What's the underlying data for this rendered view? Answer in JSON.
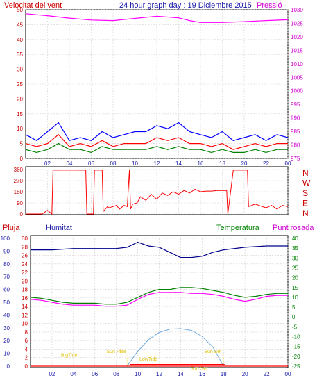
{
  "header": {
    "wind_speed_label": "Velocitat del vent",
    "graph_title": "24 hour graph day : 19 Diciembre 2015",
    "pressure_label": "Pressió"
  },
  "middle_header": {
    "rain_label": "Pluja",
    "humidity_label": "Humitat",
    "temperature_label": "Temperatura",
    "dewpoint_label": "Punt rosada"
  },
  "colors": {
    "wind": "#ff0000",
    "gust": "#0000ff",
    "avg": "#008000",
    "pressure": "#ff00ff",
    "direction": "#ff0000",
    "humidity": "#00008b",
    "temperature": "#008000",
    "dewpoint": "#ff00ff",
    "rain": "#ff0000",
    "sun_arc": "#6fa8dc",
    "annotation": "#e0c000"
  },
  "chart_data": [
    {
      "type": "line",
      "title": "24 hour graph day : 19 Diciembre 2015",
      "ylabel": "Velocitat del vent",
      "y2label": "Pressió",
      "ylim": [
        0,
        50
      ],
      "y2lim": [
        975,
        1030
      ],
      "x_ticks": [
        "02",
        "04",
        "06",
        "08",
        "10",
        "12",
        "14",
        "16",
        "18",
        "20",
        "22",
        "00"
      ],
      "y_ticks": [
        "0",
        "5",
        "10",
        "15",
        "20",
        "25",
        "30",
        "35",
        "40",
        "45",
        "50"
      ],
      "y2_ticks": [
        "975",
        "980",
        "985",
        "990",
        "995",
        "1000",
        "1005",
        "1010",
        "1015",
        "1020",
        "1025",
        "1030"
      ],
      "series": [
        {
          "name": "Pressió",
          "axis": "right",
          "x": [
            0,
            2,
            4,
            6,
            8,
            10,
            12,
            14,
            15,
            16,
            18,
            20,
            22,
            24
          ],
          "y": [
            1028.5,
            1027.8,
            1026.9,
            1026.2,
            1026.0,
            1026.8,
            1027.6,
            1027.0,
            1026.0,
            1025.3,
            1025.3,
            1025.6,
            1026.0,
            1026.3
          ]
        },
        {
          "name": "gust",
          "axis": "left",
          "x": [
            0,
            1,
            2,
            3,
            4,
            5,
            6,
            7,
            8,
            9,
            10,
            11,
            12,
            13,
            14,
            15,
            16,
            17,
            18,
            19,
            20,
            21,
            22,
            23,
            24
          ],
          "y": [
            8,
            6,
            9,
            12,
            6,
            7,
            6,
            9,
            7,
            8,
            9,
            9,
            11,
            10,
            12,
            9,
            8,
            7,
            9,
            6,
            7,
            8,
            6,
            8,
            7
          ]
        },
        {
          "name": "wind",
          "axis": "left",
          "x": [
            0,
            1,
            2,
            3,
            4,
            5,
            6,
            7,
            8,
            9,
            10,
            11,
            12,
            13,
            14,
            15,
            16,
            17,
            18,
            19,
            20,
            21,
            22,
            23,
            24
          ],
          "y": [
            5,
            4,
            5,
            8,
            4,
            5,
            4,
            6,
            4,
            5,
            5,
            5,
            7,
            6,
            7,
            5,
            5,
            4,
            5,
            3,
            4,
            5,
            4,
            5,
            5
          ]
        },
        {
          "name": "avg",
          "axis": "left",
          "x": [
            0,
            1,
            2,
            3,
            4,
            5,
            6,
            7,
            8,
            9,
            10,
            11,
            12,
            13,
            14,
            15,
            16,
            17,
            18,
            19,
            20,
            21,
            22,
            23,
            24
          ],
          "y": [
            3,
            2,
            3,
            5,
            3,
            3,
            2,
            4,
            3,
            3,
            3,
            3,
            4,
            3,
            4,
            3,
            3,
            2,
            3,
            2,
            2,
            3,
            2,
            3,
            3
          ]
        }
      ]
    },
    {
      "type": "line",
      "ylim": [
        0,
        360
      ],
      "y_ticks": [
        "0",
        "90",
        "180",
        "270",
        "360"
      ],
      "right_labels": [
        "N",
        "W",
        "S",
        "E",
        "N"
      ],
      "series": [
        {
          "name": "direction",
          "x": [
            0,
            1.5,
            2.0,
            2.4,
            2.5,
            5.5,
            5.6,
            6.2,
            6.3,
            7.0,
            7.1,
            7.5,
            7.6,
            8.0,
            8.3,
            8.6,
            9.0,
            9.3,
            9.5,
            9.6,
            9.8,
            10.2,
            10.5,
            11.0,
            11.5,
            12.0,
            12.5,
            13.0,
            13.5,
            14.0,
            14.5,
            15.0,
            15.5,
            16.0,
            16.5,
            17.0,
            17.5,
            18.0,
            18.4,
            18.5,
            19.0,
            19.2,
            20.3,
            20.4,
            21.0,
            22.0,
            22.5,
            23.0,
            23.5,
            24.0
          ],
          "y": [
            0,
            0,
            30,
            0,
            355,
            355,
            0,
            0,
            355,
            355,
            20,
            60,
            50,
            60,
            70,
            40,
            70,
            60,
            360,
            40,
            80,
            90,
            140,
            110,
            160,
            120,
            170,
            150,
            180,
            160,
            190,
            170,
            200,
            180,
            185,
            185,
            190,
            190,
            190,
            0,
            355,
            355,
            355,
            60,
            80,
            50,
            70,
            40,
            70,
            60
          ]
        }
      ]
    },
    {
      "type": "line",
      "ylim": [
        0,
        30
      ],
      "y2lim": [
        -25,
        40
      ],
      "x_ticks": [
        "02",
        "04",
        "06",
        "08",
        "10",
        "12",
        "14",
        "16",
        "18",
        "20",
        "22",
        "00"
      ],
      "y_ticks": [
        "0",
        "2",
        "4",
        "6",
        "8",
        "10",
        "12",
        "14",
        "16",
        "18",
        "20",
        "22",
        "24",
        "26",
        "28",
        "30"
      ],
      "y_ticks_outer": [
        "0",
        "10",
        "20",
        "30",
        "40",
        "50",
        "60",
        "70",
        "80",
        "90",
        "100"
      ],
      "y2_ticks": [
        "-25",
        "-20",
        "-15",
        "-10",
        "-5",
        "0",
        "5",
        "10",
        "15",
        "20",
        "25",
        "30",
        "35",
        "40"
      ],
      "series": [
        {
          "name": "Humitat",
          "axis": "outer",
          "x": [
            0,
            2,
            4,
            6,
            8,
            9,
            10,
            11,
            12,
            13,
            14,
            15,
            16,
            17,
            18,
            20,
            22,
            24
          ],
          "y": [
            91,
            91,
            92,
            92,
            92,
            93,
            97,
            94,
            93,
            89,
            85,
            85,
            86,
            89,
            91,
            93,
            94,
            94
          ]
        },
        {
          "name": "Temperatura",
          "axis": "right",
          "x": [
            0,
            1,
            2,
            3,
            4,
            5,
            6,
            7,
            8,
            9,
            10,
            11,
            12,
            13,
            14,
            15,
            16,
            17,
            18,
            19,
            20,
            21,
            22,
            23,
            24
          ],
          "y": [
            10,
            9.5,
            8.5,
            7.5,
            7.0,
            7.0,
            7.0,
            6.5,
            6.5,
            7.5,
            10.0,
            12.5,
            14.0,
            14.0,
            15.0,
            15.0,
            14.5,
            13.5,
            12.5,
            11.0,
            10.0,
            10.5,
            11.5,
            12.0,
            12.0
          ]
        },
        {
          "name": "Punt rosada",
          "axis": "right",
          "x": [
            0,
            1,
            2,
            3,
            4,
            5,
            6,
            7,
            8,
            9,
            10,
            11,
            12,
            13,
            14,
            15,
            16,
            17,
            18,
            19,
            20,
            21,
            22,
            23,
            24
          ],
          "y": [
            9,
            8.5,
            7.5,
            6.5,
            6.0,
            6.0,
            6.0,
            5.5,
            5.5,
            6.0,
            9.0,
            11.5,
            12.5,
            12.5,
            12.5,
            12.0,
            12.0,
            11.5,
            10.5,
            9.0,
            8.0,
            9.0,
            10.5,
            11.0,
            11.0
          ]
        },
        {
          "name": "Pluja",
          "axis": "left",
          "x": [
            0,
            24
          ],
          "y": [
            0,
            0
          ]
        }
      ],
      "annotations": [
        {
          "text": "BigTide",
          "x": 3.6,
          "y": 2.2
        },
        {
          "text": "Sun Rise",
          "x": 8.0,
          "y": 3.1
        },
        {
          "text": "LowTide",
          "x": 11.0,
          "y": 1.3
        },
        {
          "text": "Sun Set",
          "x": 17.0,
          "y": 3.1
        },
        {
          "text": "Sun Set",
          "x": 15.7,
          "y": -0.9
        }
      ],
      "sun_arc": {
        "x": [
          9.0,
          10,
          11,
          12,
          13,
          14,
          15,
          16,
          17,
          18.0
        ],
        "y": [
          0,
          3.5,
          6.2,
          7.9,
          8.7,
          8.8,
          8.4,
          7.0,
          4.5,
          0
        ]
      },
      "rain_bar": {
        "from": 9.3,
        "to": 18.1,
        "value": 0.2
      }
    }
  ]
}
